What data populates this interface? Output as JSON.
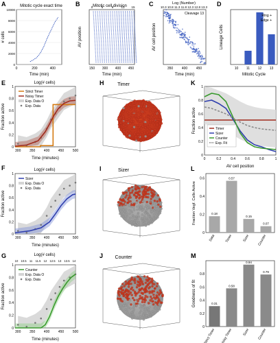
{
  "panels": {
    "A": {
      "letter": "A",
      "title": "Mitotic cycle exact time",
      "xlabel": "Time (min)",
      "ylabel": "# cells",
      "xticks": [
        "0",
        "200",
        "400"
      ],
      "yticks": [
        "0",
        "2000",
        "4000",
        "6000",
        "8000",
        "10000"
      ]
    },
    "B": {
      "letter": "B",
      "title": "Mitotic cell division",
      "xlabel": "Time (min)",
      "ylabel": "AV position",
      "topticks": [
        "0",
        "5",
        "9",
        "13",
        "15"
      ],
      "xticks": [
        "150",
        "300",
        "400",
        "450"
      ]
    },
    "C": {
      "letter": "C",
      "title": "Log (Number)",
      "top_row": "10.3 10.8 11.3 11.8 12.3 12.8 13.3",
      "subtitle": "Cleavage 13",
      "xlabel": "Time (min)",
      "ylabel": "AV cell position",
      "xticks": [
        "350",
        "400",
        "450"
      ]
    },
    "D": {
      "letter": "D",
      "xlabel": "Mitotic Cycle",
      "ylabel": "Lineage Cells",
      "legend": [
        "Ring +",
        "Edge +"
      ],
      "categories": [
        "10",
        "11",
        "12",
        "13"
      ]
    },
    "E": {
      "letter": "E",
      "top_axis": "Log(# cells)",
      "xlabel": "Time (minutes)",
      "ylabel": "Fraction active",
      "legend": [
        "Strict Timer",
        "Noisy Timer",
        "Exp. Data O",
        "Exp. Data"
      ],
      "xticks": [
        "300",
        "350",
        "400",
        "450",
        "500"
      ],
      "yticks": [
        "0",
        "0.2",
        "0.4",
        "0.6",
        "0.8",
        "1"
      ]
    },
    "F": {
      "letter": "F",
      "top_axis": "Log(# cells)",
      "xlabel": "Time (minutes)",
      "ylabel": "Fraction active",
      "legend": [
        "Sizer",
        "Exp. Data O",
        "Exp. Data"
      ],
      "xticks": [
        "300",
        "350",
        "400",
        "450",
        "500"
      ],
      "yticks": [
        "0",
        "0.2",
        "0.4",
        "0.6",
        "0.8",
        "1"
      ]
    },
    "G": {
      "letter": "G",
      "top_axis": "Log(# cells)",
      "top_ticks": [
        "10",
        "10.5",
        "11",
        "11.5",
        "12",
        "12.5",
        "13",
        "13.5",
        "14"
      ],
      "xlabel": "Time (minutes)",
      "ylabel": "Fraction active",
      "legend": [
        "Counter",
        "Exp. Data O",
        "Exp. Data"
      ],
      "xticks": [
        "300",
        "350",
        "400",
        "450",
        "500"
      ],
      "yticks": [
        "0",
        "0.2",
        "0.4",
        "0.6",
        "0.8",
        "1"
      ]
    },
    "H": {
      "letter": "H",
      "title": "Timer"
    },
    "I": {
      "letter": "I",
      "title": "Sizer"
    },
    "J": {
      "letter": "J",
      "title": "Counter"
    },
    "K": {
      "letter": "K",
      "xlabel": "AV cell position",
      "ylabel": "Fraction active",
      "legend": [
        "Timer",
        "Sizer",
        "Counter",
        "Exp. Fit"
      ],
      "xticks": [
        "0",
        "0.2",
        "0.4",
        "0.6",
        "0.8",
        "1"
      ],
      "yticks": [
        "0",
        "0.2",
        "0.4",
        "0.6",
        "0.8",
        "1"
      ]
    },
    "L": {
      "letter": "L",
      "ylabel": "Fraction Vegf. Cells Active",
      "yticks": [
        "0",
        "0.2",
        "0.4",
        "0.6"
      ]
    },
    "M": {
      "letter": "M",
      "ylabel": "Goodness of fit",
      "yticks": [
        "0",
        "0.2",
        "0.4",
        "0.6",
        "0.8"
      ]
    }
  },
  "colors": {
    "timer": "#a02a1c",
    "strict": "#d47a12",
    "sizer": "#2f3fae",
    "counter": "#3a9a2e",
    "fit": "#8a8a8a",
    "data": "#777777",
    "bar_blue": "#3a5bbf",
    "bar_gray": "#a8a8a8",
    "cell_red": "#c8381f",
    "cell_gray": "#9a9a9a",
    "band": "#d4d4d4"
  },
  "chart_data": [
    {
      "panel": "A",
      "type": "line",
      "title": "Mitotic cycle exact time",
      "xlabel": "Time (min)",
      "ylabel": "# cells",
      "xlim": [
        0,
        500
      ],
      "ylim": [
        0,
        10000
      ],
      "series": [
        {
          "x": [
            150,
            220,
            260,
            300,
            340,
            380,
            420,
            460
          ],
          "y": [
            500,
            1200,
            2000,
            3200,
            4800,
            6200,
            7600,
            8600
          ]
        }
      ]
    },
    {
      "panel": "D",
      "type": "bar",
      "xlabel": "Mitotic Cycle",
      "ylabel": "Lineage Cells",
      "categories": [
        "10",
        "11",
        "12",
        "13"
      ],
      "values": [
        0.0,
        0.25,
        0.95,
        0.55
      ],
      "ylim": [
        0,
        1
      ]
    },
    {
      "panel": "E",
      "type": "line",
      "xlabel": "Time (minutes)",
      "ylabel": "Fraction active",
      "xlim": [
        290,
        500
      ],
      "ylim": [
        0,
        1
      ],
      "series": [
        {
          "name": "Strict Timer",
          "x": [
            290,
            378,
            378,
            422,
            422,
            500
          ],
          "y": [
            0,
            0,
            0.02,
            0.02,
            0.7,
            0.7
          ]
        },
        {
          "name": "Noisy Timer",
          "x": [
            290,
            330,
            370,
            395,
            410,
            425,
            440,
            460,
            480,
            500
          ],
          "y": [
            0.01,
            0.03,
            0.1,
            0.25,
            0.38,
            0.52,
            0.63,
            0.72,
            0.76,
            0.77
          ]
        },
        {
          "name": "Exp. Data",
          "x": [
            300,
            330,
            360,
            380,
            400,
            415,
            430,
            445,
            460,
            480,
            500
          ],
          "y": [
            0.05,
            0.02,
            0.08,
            0.15,
            0.3,
            0.45,
            0.55,
            0.65,
            0.75,
            0.8,
            0.85
          ]
        }
      ]
    },
    {
      "panel": "F",
      "type": "line",
      "xlabel": "Time (minutes)",
      "ylabel": "Fraction active",
      "xlim": [
        290,
        500
      ],
      "ylim": [
        0,
        1
      ],
      "series": [
        {
          "name": "Sizer",
          "x": [
            290,
            340,
            380,
            410,
            430,
            450,
            470,
            490,
            500
          ],
          "y": [
            0.02,
            0.05,
            0.1,
            0.2,
            0.33,
            0.47,
            0.58,
            0.65,
            0.66
          ]
        },
        {
          "name": "Exp. Data",
          "x": [
            300,
            330,
            360,
            380,
            400,
            415,
            430,
            445,
            460,
            480,
            500
          ],
          "y": [
            0.05,
            0.02,
            0.08,
            0.15,
            0.3,
            0.45,
            0.55,
            0.65,
            0.75,
            0.8,
            0.85
          ]
        }
      ]
    },
    {
      "panel": "G",
      "type": "line",
      "xlabel": "Time (minutes)",
      "ylabel": "Fraction active",
      "xlim": [
        290,
        500
      ],
      "ylim": [
        0,
        1
      ],
      "series": [
        {
          "name": "Counter",
          "x": [
            290,
            380,
            395,
            410,
            425,
            440,
            455,
            470,
            485,
            500
          ],
          "y": [
            0,
            0,
            0.05,
            0.18,
            0.35,
            0.5,
            0.62,
            0.72,
            0.8,
            0.85
          ]
        },
        {
          "name": "Exp. Data",
          "x": [
            300,
            330,
            360,
            380,
            400,
            415,
            430,
            445,
            460,
            480,
            500
          ],
          "y": [
            0.05,
            0.02,
            0.08,
            0.15,
            0.3,
            0.45,
            0.55,
            0.65,
            0.75,
            0.8,
            0.85
          ]
        }
      ]
    },
    {
      "panel": "K",
      "type": "line",
      "xlabel": "AV cell position",
      "ylabel": "Fraction active",
      "xlim": [
        0,
        1
      ],
      "ylim": [
        0,
        1
      ],
      "series": [
        {
          "name": "Timer",
          "x": [
            0,
            1
          ],
          "y": [
            0.51,
            0.51
          ]
        },
        {
          "name": "Sizer",
          "x": [
            0,
            0.1,
            0.2,
            0.3,
            0.4,
            0.5,
            0.6,
            0.7,
            0.8,
            0.9,
            1.0
          ],
          "y": [
            0.78,
            0.8,
            0.75,
            0.68,
            0.52,
            0.35,
            0.22,
            0.15,
            0.12,
            0.08,
            0.05
          ]
        },
        {
          "name": "Counter",
          "x": [
            0,
            0.1,
            0.2,
            0.3,
            0.4,
            0.5,
            0.6,
            0.7,
            0.8,
            0.9,
            1.0
          ],
          "y": [
            0.85,
            0.9,
            0.88,
            0.78,
            0.55,
            0.32,
            0.18,
            0.12,
            0.1,
            0.09,
            0.08
          ]
        },
        {
          "name": "Exp. Fit",
          "x": [
            0,
            0.1,
            0.2,
            0.3,
            0.4,
            0.5,
            0.6,
            0.7,
            0.8,
            0.9,
            1.0
          ],
          "y": [
            0.7,
            0.68,
            0.64,
            0.6,
            0.54,
            0.48,
            0.43,
            0.4,
            0.38,
            0.37,
            0.36
          ]
        }
      ]
    },
    {
      "panel": "L",
      "type": "bar",
      "ylabel": "Fraction Vegf. Cells Active",
      "categories": [
        "Data",
        "Timer",
        "Sizer",
        "Counter"
      ],
      "values": [
        0.18,
        0.57,
        0.15,
        0.07
      ],
      "labels": [
        "0.18",
        "0.57",
        "0.15",
        "0.07"
      ],
      "ylim": [
        0,
        0.65
      ]
    },
    {
      "panel": "M",
      "type": "bar",
      "ylabel": "Goodness of fit",
      "categories": [
        "Strict Timer",
        "Noisy Timer",
        "Sizer",
        "Counter"
      ],
      "values": [
        0.31,
        0.58,
        0.94,
        0.79
      ],
      "labels": [
        "0.31",
        "0.58",
        "0.94",
        "0.79"
      ],
      "ylim": [
        0,
        1
      ]
    }
  ]
}
